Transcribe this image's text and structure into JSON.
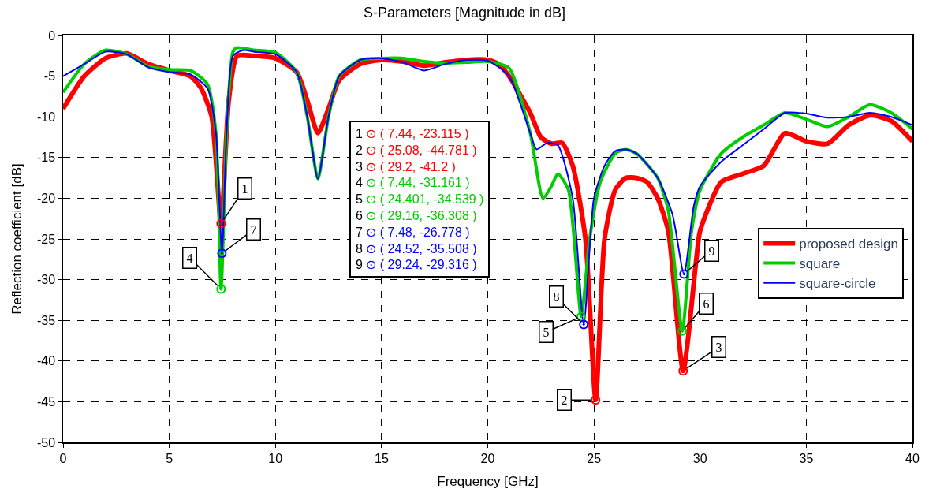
{
  "chart_data": {
    "type": "line",
    "title": "S-Parameters [Magnitude in dB]",
    "xlabel": "Frequency [GHz]",
    "ylabel": "Reflection coefficient [dB]",
    "xlim": [
      0,
      40
    ],
    "xticks": [
      0,
      5,
      10,
      15,
      20,
      25,
      30,
      35,
      40
    ],
    "ylim": [
      -50,
      0
    ],
    "yticks": [
      -50,
      -45,
      -40,
      -35,
      -30,
      -25,
      -20,
      -15,
      -10,
      -5,
      0
    ],
    "grid": true,
    "line_style": "solid",
    "legend": "right",
    "series": [
      {
        "name": "proposed design",
        "color": "#ff0000",
        "x": [
          0,
          1,
          2,
          3,
          4,
          5,
          6,
          6.5,
          7,
          7.44,
          7.8,
          8.2,
          9,
          10,
          11,
          11.5,
          12,
          12.5,
          13,
          14,
          15,
          16,
          17,
          18,
          19,
          20,
          20.5,
          21,
          22,
          22.5,
          23,
          23.5,
          24,
          24.6,
          25.08,
          25.5,
          26,
          26.5,
          27,
          27.5,
          28,
          28.5,
          29.2,
          29.8,
          30,
          31,
          32,
          33,
          34,
          35,
          36,
          37,
          38,
          39,
          40
        ],
        "values": [
          -9,
          -5,
          -2.8,
          -2.2,
          -3.5,
          -4.3,
          -5,
          -6.5,
          -10,
          -23.115,
          -8,
          -2.5,
          -2.5,
          -2.8,
          -4.5,
          -8,
          -12,
          -9,
          -5.5,
          -3.5,
          -3,
          -3.2,
          -3.7,
          -3.3,
          -3,
          -3,
          -3.5,
          -5,
          -9.5,
          -12.5,
          -13.3,
          -13.2,
          -16,
          -25,
          -44.781,
          -25,
          -19,
          -17.5,
          -17.5,
          -18,
          -20,
          -24,
          -41.2,
          -28,
          -24,
          -18,
          -17,
          -16,
          -12,
          -13,
          -13.3,
          -11,
          -9.8,
          -10.5,
          -13
        ]
      },
      {
        "name": "square",
        "color": "#00cc00",
        "x": [
          0,
          1,
          2,
          3,
          4,
          5,
          6,
          6.8,
          7.2,
          7.44,
          7.7,
          8,
          8.2,
          9,
          10,
          11,
          11.5,
          12,
          12.5,
          13,
          14,
          15,
          16,
          17,
          18,
          19,
          20,
          21,
          22,
          22.6,
          23,
          23.3,
          23.8,
          24.401,
          24.8,
          25.3,
          26,
          26.5,
          27,
          28,
          28.5,
          29.16,
          29.6,
          30,
          31,
          32,
          33,
          34,
          35,
          36,
          37,
          38,
          39,
          40
        ],
        "values": [
          -7,
          -3.5,
          -1.8,
          -2.3,
          -3.8,
          -4.2,
          -4.3,
          -6,
          -12,
          -31.161,
          -12,
          -2,
          -1.5,
          -1.8,
          -2.1,
          -4.5,
          -10,
          -17.6,
          -10,
          -5,
          -3,
          -2.8,
          -2.8,
          -3.2,
          -3.4,
          -3.3,
          -3.2,
          -4,
          -12,
          -20,
          -18.5,
          -17,
          -19,
          -34.539,
          -25,
          -18,
          -14.5,
          -14,
          -14.5,
          -17.5,
          -21.5,
          -36.308,
          -24,
          -19,
          -14.5,
          -12.5,
          -11,
          -9.5,
          -10.3,
          -11.2,
          -10,
          -8.5,
          -9.5,
          -11.5
        ]
      },
      {
        "name": "square-circle",
        "color": "#0000ff",
        "x": [
          0,
          1,
          2,
          3,
          4,
          5,
          6,
          6.8,
          7.2,
          7.48,
          7.7,
          8,
          8.5,
          9,
          10,
          11,
          11.5,
          12,
          12.5,
          13,
          14,
          15,
          16,
          17,
          18,
          19,
          20,
          21,
          22,
          22.3,
          22.8,
          23.3,
          24,
          24.52,
          25,
          25.5,
          26,
          26.5,
          27,
          28,
          28.7,
          29.24,
          29.7,
          30,
          31,
          32,
          33,
          34,
          35,
          36,
          37,
          38,
          39,
          40
        ],
        "values": [
          -5,
          -3.5,
          -2,
          -2.3,
          -3.9,
          -4.5,
          -4.8,
          -6.5,
          -12,
          -26.778,
          -12,
          -2.5,
          -1.8,
          -2,
          -2.3,
          -4.5,
          -10,
          -17.6,
          -10,
          -5,
          -3,
          -2.8,
          -3.3,
          -4.3,
          -3.5,
          -3,
          -3.1,
          -5,
          -12,
          -14,
          -13.2,
          -13.5,
          -20,
          -35.508,
          -20,
          -16,
          -14.2,
          -14,
          -14.5,
          -17.5,
          -22,
          -29.316,
          -21,
          -18.5,
          -15.5,
          -13.5,
          -11.5,
          -9.5,
          -9.6,
          -10.1,
          -10,
          -9.5,
          -10,
          -11
        ]
      }
    ],
    "annotations": [
      {
        "text": "1",
        "x": 7.44,
        "y": -23.115
      },
      {
        "text": "2",
        "x": 25.08,
        "y": -44.781
      },
      {
        "text": "3",
        "x": 29.2,
        "y": -41.2
      },
      {
        "text": "4",
        "x": 7.44,
        "y": -31.161
      },
      {
        "text": "5",
        "x": 24.401,
        "y": -34.539
      },
      {
        "text": "6",
        "x": 29.16,
        "y": -36.308
      },
      {
        "text": "7",
        "x": 7.48,
        "y": -26.778
      },
      {
        "text": "8",
        "x": 24.52,
        "y": -35.508
      },
      {
        "text": "9",
        "x": 29.24,
        "y": -29.316
      },
      "⊙ ( 7.44, -23.115 )",
      "⊙ ( 25.08, -44.781 )",
      "⊙ ( 29.2, -41.2 )",
      "⊙ ( 7.44, -31.161 )",
      "⊙ ( 24.401, -34.539 )",
      "⊙ ( 29.16, -36.308 )",
      "⊙ ( 7.48, -26.778 )",
      "⊙ ( 24.52, -35.508 )",
      "⊙ ( 29.24, -29.316 )"
    ]
  }
}
